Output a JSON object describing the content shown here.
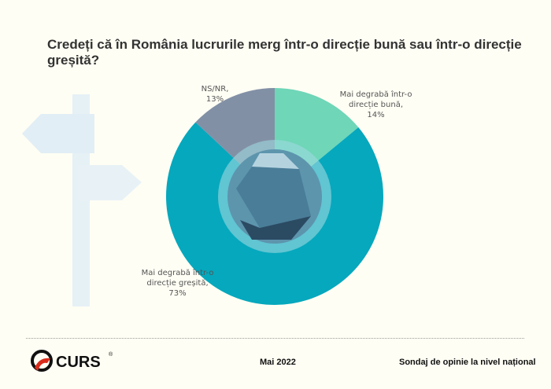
{
  "title": "Credeți că în România lucrurile merg într-o direcție bună sau într-o direcție greșită?",
  "chart_data": {
    "type": "pie",
    "variant": "donut",
    "title": "Credeți că în România lucrurile merg într-o direcție bună sau într-o direcție greșită?",
    "slices": [
      {
        "label": "Mai degrabă într-o direcție bună",
        "value": 14,
        "display": "14%",
        "color": "#6fd6b8"
      },
      {
        "label": "Mai degrabă într-o direcție greșită",
        "value": 73,
        "display": "73%",
        "color": "#06a8bd"
      },
      {
        "label": "NS/NR",
        "value": 13,
        "display": "13%",
        "color": "#8290a6"
      }
    ]
  },
  "labels": {
    "good": [
      "Mai degrabă într-o",
      "direcție bună,",
      "14%"
    ],
    "bad": [
      "Mai degrabă într-o",
      "direcție greșită,",
      "73%"
    ],
    "ns": [
      "NS/NR,",
      "13%"
    ]
  },
  "footer": {
    "logo": "CURS",
    "date": "Mai 2022",
    "survey": "Sondaj de opinie la nivel național"
  }
}
